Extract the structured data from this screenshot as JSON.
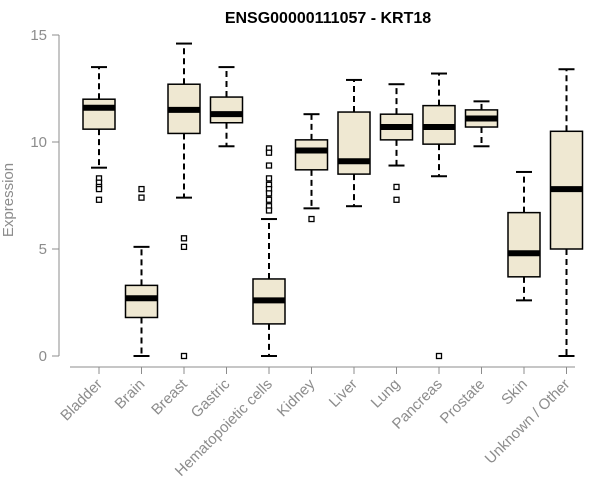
{
  "chart_data": {
    "type": "boxplot",
    "title": "ENSG00000111057 - KRT18",
    "xlabel": "",
    "ylabel": "Expression",
    "ylim": [
      0,
      15
    ],
    "yticks": [
      "0",
      "5",
      "10",
      "15"
    ],
    "box_fill": "#efe8d2",
    "box_stroke": "#000000",
    "median_color": "#000000",
    "categories": [
      "Bladder",
      "Brain",
      "Breast",
      "Gastric",
      "Hematopoietic cells",
      "Kidney",
      "Liver",
      "Lung",
      "Pancreas",
      "Prostate",
      "Skin",
      "Unknown / Other"
    ],
    "boxes": [
      {
        "name": "Bladder",
        "whisker_low": 8.8,
        "q1": 10.6,
        "median": 11.6,
        "q3": 12.0,
        "whisker_high": 13.5,
        "outliers": [
          8.3,
          8.1,
          7.9,
          7.8,
          7.3
        ]
      },
      {
        "name": "Brain",
        "whisker_low": 0.0,
        "q1": 1.8,
        "median": 2.7,
        "q3": 3.3,
        "whisker_high": 5.1,
        "outliers": [
          7.8,
          7.4
        ]
      },
      {
        "name": "Breast",
        "whisker_low": 7.4,
        "q1": 10.4,
        "median": 11.5,
        "q3": 12.7,
        "whisker_high": 14.6,
        "outliers": [
          5.5,
          5.1,
          0.0
        ]
      },
      {
        "name": "Gastric",
        "whisker_low": 9.8,
        "q1": 10.9,
        "median": 11.3,
        "q3": 12.1,
        "whisker_high": 13.5,
        "outliers": []
      },
      {
        "name": "Hematopoietic cells",
        "whisker_low": 0.0,
        "q1": 1.5,
        "median": 2.6,
        "q3": 3.6,
        "whisker_high": 6.4,
        "outliers": [
          9.7,
          9.5,
          8.9,
          8.3,
          8.0,
          7.8,
          7.6,
          7.3,
          7.0,
          6.8
        ]
      },
      {
        "name": "Kidney",
        "whisker_low": 6.9,
        "q1": 8.7,
        "median": 9.6,
        "q3": 10.1,
        "whisker_high": 11.3,
        "outliers": [
          6.4
        ]
      },
      {
        "name": "Liver",
        "whisker_low": 7.0,
        "q1": 8.5,
        "median": 9.1,
        "q3": 11.4,
        "whisker_high": 12.9,
        "outliers": []
      },
      {
        "name": "Lung",
        "whisker_low": 8.9,
        "q1": 10.1,
        "median": 10.7,
        "q3": 11.3,
        "whisker_high": 12.7,
        "outliers": [
          7.9,
          7.3
        ]
      },
      {
        "name": "Pancreas",
        "whisker_low": 8.4,
        "q1": 9.9,
        "median": 10.7,
        "q3": 11.7,
        "whisker_high": 13.2,
        "outliers": [
          0.0
        ]
      },
      {
        "name": "Prostate",
        "whisker_low": 9.8,
        "q1": 10.7,
        "median": 11.1,
        "q3": 11.5,
        "whisker_high": 11.9,
        "outliers": []
      },
      {
        "name": "Skin",
        "whisker_low": 2.6,
        "q1": 3.7,
        "median": 4.8,
        "q3": 6.7,
        "whisker_high": 8.6,
        "outliers": []
      },
      {
        "name": "Unknown / Other",
        "whisker_low": 0.0,
        "q1": 5.0,
        "median": 7.8,
        "q3": 10.5,
        "whisker_high": 13.4,
        "outliers": []
      }
    ]
  }
}
